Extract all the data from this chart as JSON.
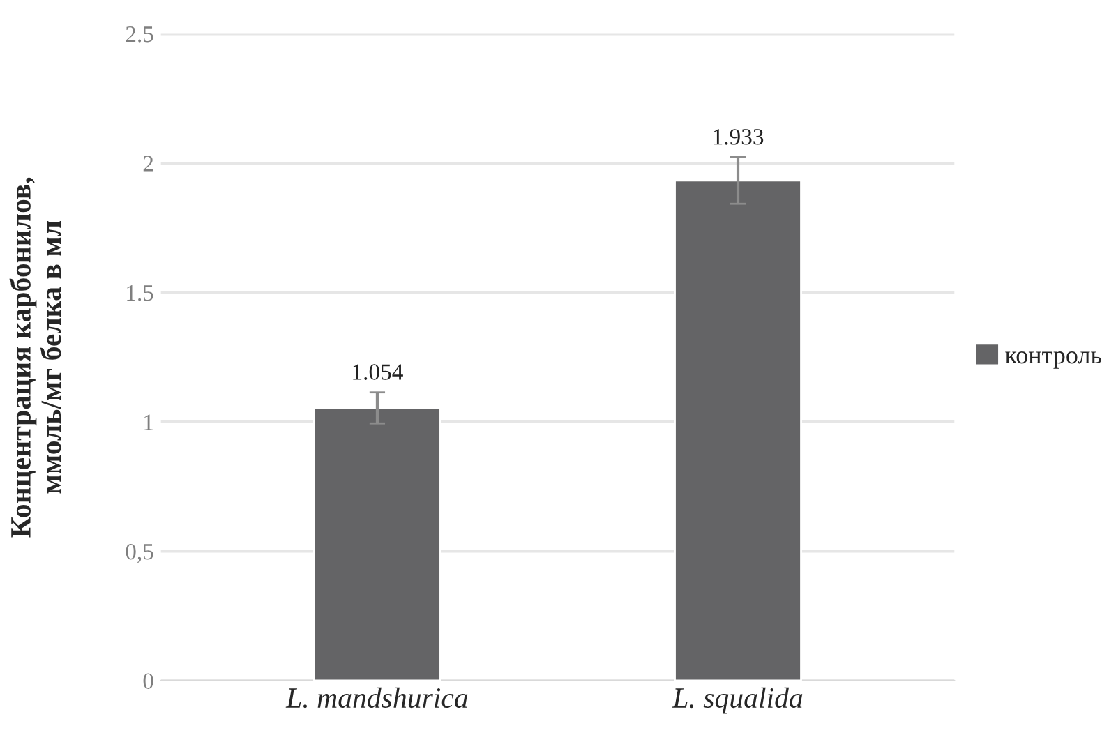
{
  "chart_data": {
    "type": "bar",
    "ylabel": "Концентрация карбонилов,\nммоль/мг белка в мл",
    "categories": [
      "L. mandshurica",
      "L. squalida"
    ],
    "series": [
      {
        "name": "контроль",
        "color": "#646466",
        "values": [
          1.054,
          1.933
        ],
        "errors": [
          0.06,
          0.09
        ]
      }
    ],
    "data_labels": true,
    "ylim": [
      0,
      2.5
    ],
    "yticks": [
      0,
      {
        "value": 0.5,
        "label": "0,5"
      },
      1,
      {
        "value": 1.5,
        "label": "1.5"
      },
      2,
      {
        "value": 2.5,
        "label": "2.5"
      }
    ],
    "grid": "y",
    "legend": "right"
  }
}
